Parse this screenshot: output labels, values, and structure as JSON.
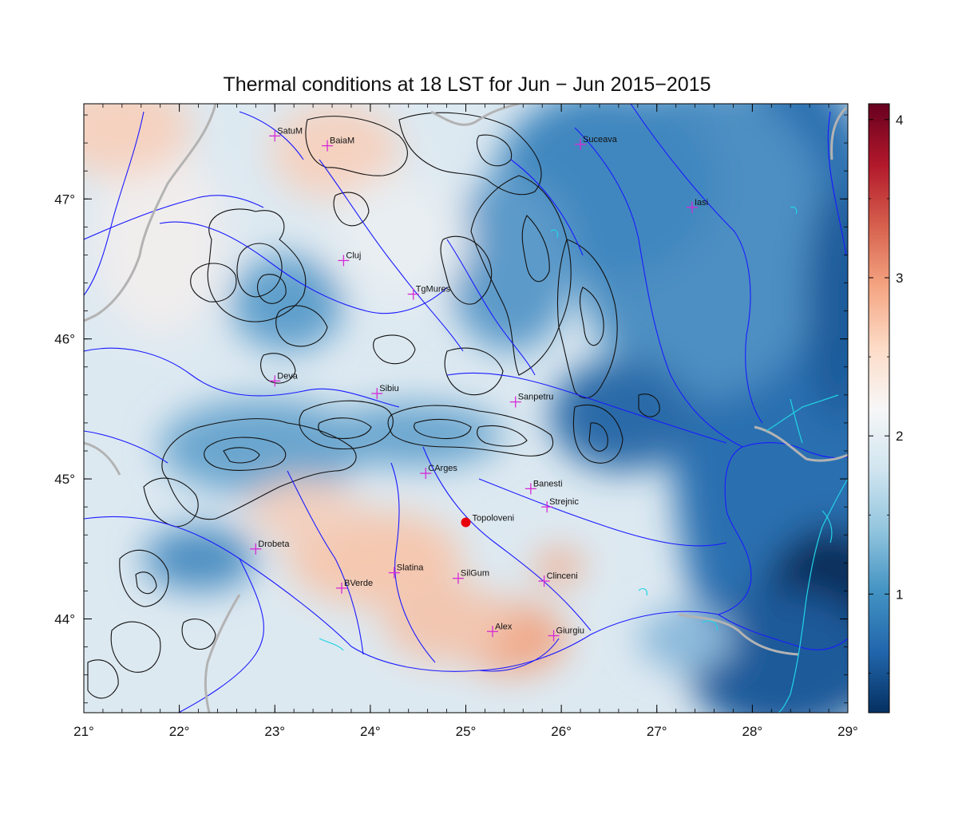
{
  "title": "Thermal conditions at 18 LST for Jun − Jun  2015−2015",
  "map": {
    "lon_range": [
      21,
      29
    ],
    "lat_range": [
      43.33,
      47.68
    ],
    "lon_ticks": [
      "21°",
      "22°",
      "23°",
      "24°",
      "25°",
      "26°",
      "27°",
      "28°",
      "29°"
    ],
    "lon_tick_values": [
      21,
      22,
      23,
      24,
      25,
      26,
      27,
      28,
      29
    ],
    "lat_ticks": [
      "44°",
      "45°",
      "46°",
      "47°"
    ],
    "lat_tick_values": [
      44,
      45,
      46,
      47
    ],
    "colorbar": {
      "range": [
        0.25,
        4.1
      ],
      "ticks": [
        "1",
        "2",
        "3",
        "4"
      ],
      "tick_values": [
        1,
        2,
        3,
        4
      ],
      "palette": [
        "#053061",
        "#2166ac",
        "#4393c3",
        "#92c5de",
        "#d1e5f0",
        "#f7f7f7",
        "#fddbc7",
        "#f4a582",
        "#d6604d",
        "#b2182b",
        "#67001f"
      ]
    },
    "stations": [
      {
        "name": "SatuM",
        "lon": 23.0,
        "lat": 47.45
      },
      {
        "name": "BaiaM",
        "lon": 23.55,
        "lat": 47.38
      },
      {
        "name": "Suceava",
        "lon": 26.2,
        "lat": 47.39
      },
      {
        "name": "Iasi",
        "lon": 27.37,
        "lat": 46.94
      },
      {
        "name": "Cluj",
        "lon": 23.72,
        "lat": 46.56
      },
      {
        "name": "TgMures",
        "lon": 24.45,
        "lat": 46.32
      },
      {
        "name": "Deva",
        "lon": 23.0,
        "lat": 45.7
      },
      {
        "name": "Sibiu",
        "lon": 24.07,
        "lat": 45.61
      },
      {
        "name": "Sanpetru",
        "lon": 25.52,
        "lat": 45.55
      },
      {
        "name": "CArges",
        "lon": 24.58,
        "lat": 45.04
      },
      {
        "name": "Banesti",
        "lon": 25.68,
        "lat": 44.93
      },
      {
        "name": "Strejnic",
        "lon": 25.85,
        "lat": 44.8
      },
      {
        "name": "Drobeta",
        "lon": 22.8,
        "lat": 44.5
      },
      {
        "name": "Slatina",
        "lon": 24.25,
        "lat": 44.33
      },
      {
        "name": "SilGum",
        "lon": 24.92,
        "lat": 44.29
      },
      {
        "name": "Clinceni",
        "lon": 25.82,
        "lat": 44.27
      },
      {
        "name": "BVerde",
        "lon": 23.7,
        "lat": 44.22
      },
      {
        "name": "Alex",
        "lon": 25.28,
        "lat": 43.91
      },
      {
        "name": "Giurgiu",
        "lon": 25.92,
        "lat": 43.88
      }
    ],
    "highlight_station": {
      "name": "Topoloveni",
      "lon": 25.0,
      "lat": 44.69,
      "color": "#e8000b"
    },
    "colors": {
      "rivers": "#1a1aff",
      "borders": "#b3b3b3",
      "contours": "#111111",
      "station_marker": "#d62ad6",
      "lakes": "#22d4e6"
    }
  }
}
